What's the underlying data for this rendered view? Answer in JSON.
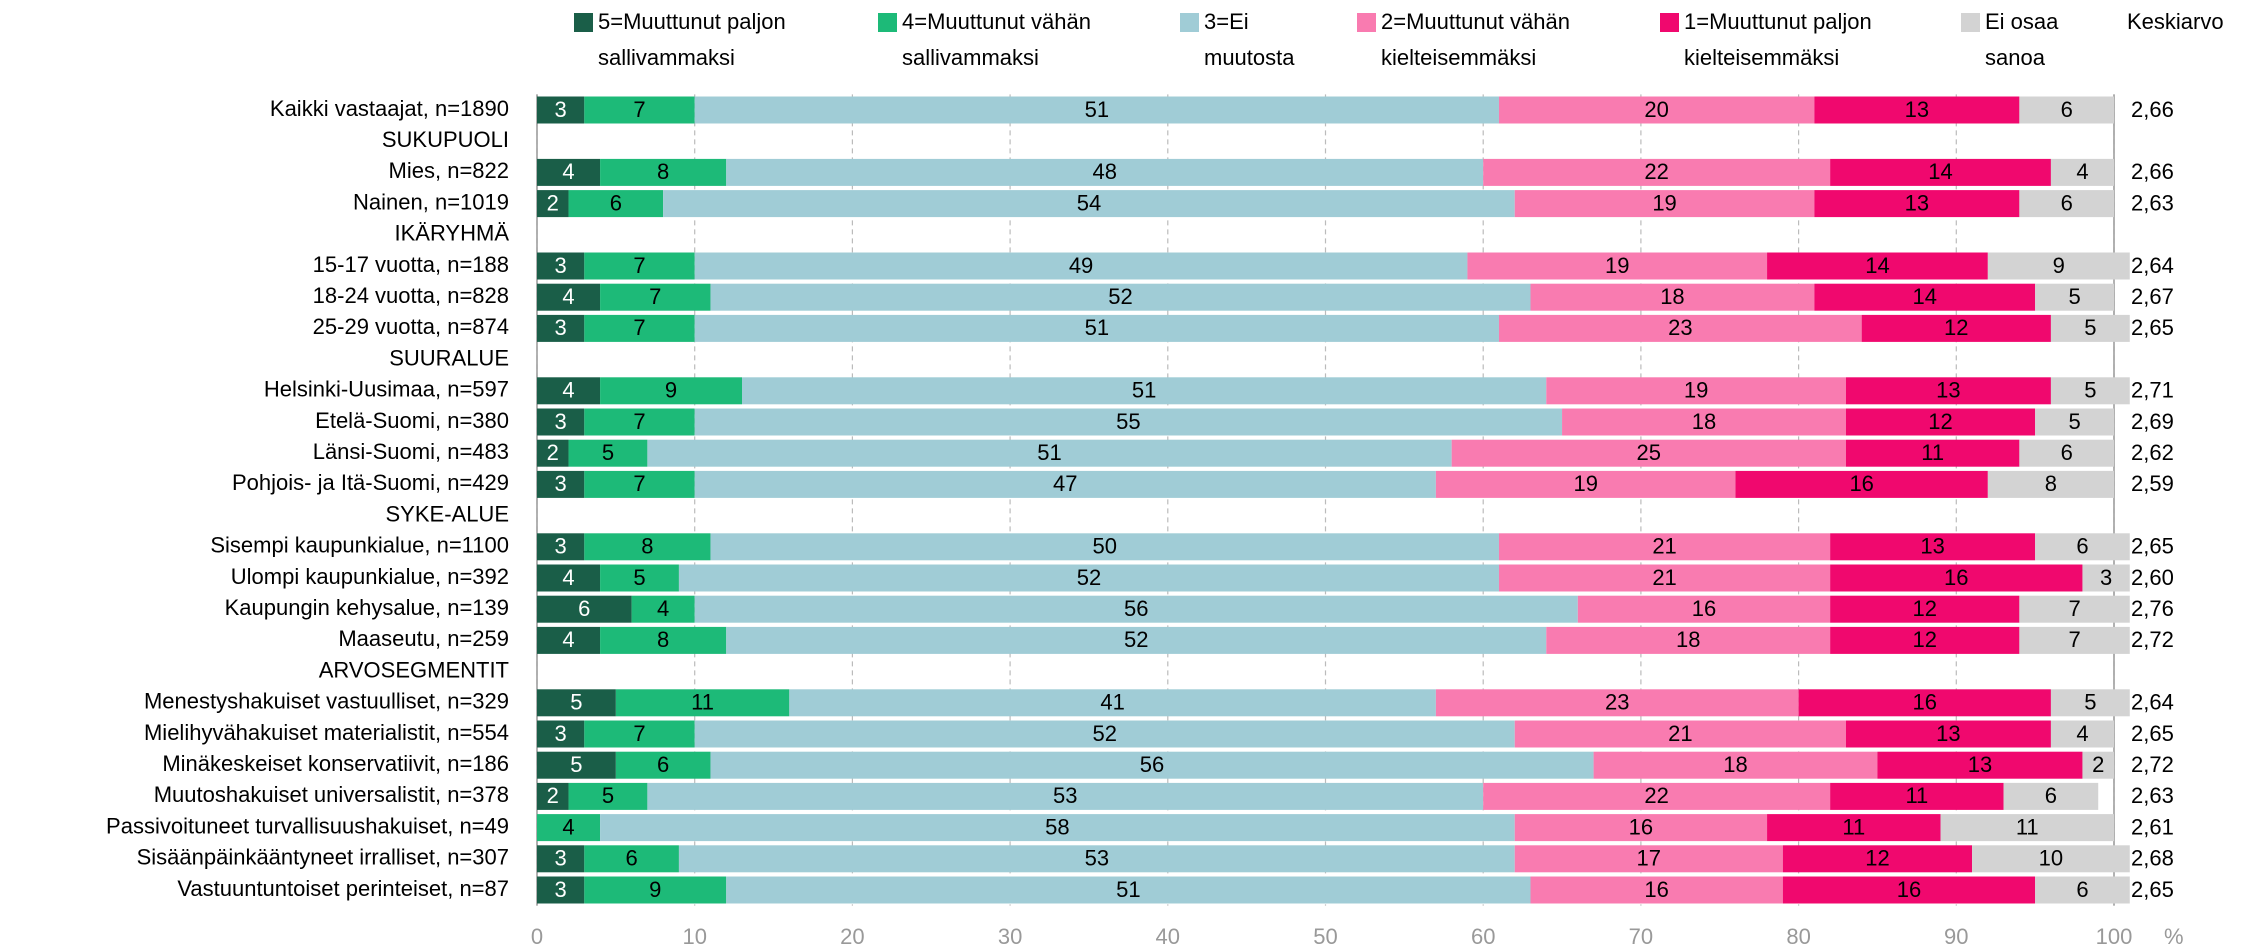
{
  "chart_data": {
    "type": "stacked-bar-horizontal",
    "average_title": "Keskiarvo",
    "x_unit": "%",
    "xlim": [
      0,
      100
    ],
    "xticks": [
      0,
      10,
      20,
      30,
      40,
      50,
      60,
      70,
      80,
      90,
      100
    ],
    "grid": true,
    "legend": "top",
    "categories": [
      "Kaikki vastaajat, n=1890",
      "SUKUPUOLI",
      "Mies, n=822",
      "Nainen, n=1019",
      "IKÄRYHMÄ",
      "15-17 vuotta, n=188",
      "18-24 vuotta, n=828",
      "25-29 vuotta, n=874",
      "SUURALUE",
      "Helsinki-Uusimaa, n=597",
      "Etelä-Suomi, n=380",
      "Länsi-Suomi, n=483",
      "Pohjois- ja Itä-Suomi, n=429",
      "SYKE-ALUE",
      "Sisempi kaupunkialue, n=1100",
      "Ulompi kaupunkialue, n=392",
      "Kaupungin kehysalue, n=139",
      "Maaseutu, n=259",
      "ARVOSEGMENTIT",
      "Menestyshakuiset vastuulliset, n=329",
      "Mielihyvähakuiset materialistit, n=554",
      "Minäkeskeiset konservatiivit, n=186",
      "Muutoshakuiset universalistit, n=378",
      "Passivoituneet turvallisuushakuiset, n=49",
      "Sisäänpäinkääntyneet irralliset, n=307",
      "Vastuuntuntoiset perinteiset, n=87"
    ],
    "series": [
      {
        "name": "5=Muuttunut paljon sallivammaksi",
        "color": "#1a5e48",
        "values": [
          3,
          null,
          4,
          2,
          null,
          3,
          4,
          3,
          null,
          4,
          3,
          2,
          3,
          null,
          3,
          4,
          6,
          4,
          null,
          5,
          3,
          5,
          2,
          null,
          3,
          3
        ]
      },
      {
        "name": "4=Muuttunut vähän sallivammaksi",
        "color": "#1dba78",
        "values": [
          7,
          null,
          8,
          6,
          null,
          7,
          7,
          7,
          null,
          9,
          7,
          5,
          7,
          null,
          8,
          5,
          4,
          8,
          null,
          11,
          7,
          6,
          5,
          4,
          6,
          9
        ]
      },
      {
        "name": "3=Ei muutosta",
        "color": "#a0ccd6",
        "values": [
          51,
          null,
          48,
          54,
          null,
          49,
          52,
          51,
          null,
          51,
          55,
          51,
          47,
          null,
          50,
          52,
          56,
          52,
          null,
          41,
          52,
          56,
          53,
          58,
          53,
          51
        ]
      },
      {
        "name": "2=Muuttunut vähän kielteisemmäksi",
        "color": "#f97bb0",
        "values": [
          20,
          null,
          22,
          19,
          null,
          19,
          18,
          23,
          null,
          19,
          18,
          25,
          19,
          null,
          21,
          21,
          16,
          18,
          null,
          23,
          21,
          18,
          22,
          16,
          17,
          16
        ]
      },
      {
        "name": "1=Muuttunut paljon kielteisemmäksi",
        "color": "#f0086e",
        "values": [
          13,
          null,
          14,
          13,
          null,
          14,
          14,
          12,
          null,
          13,
          12,
          11,
          16,
          null,
          13,
          16,
          12,
          12,
          null,
          16,
          13,
          13,
          11,
          11,
          12,
          16
        ]
      },
      {
        "name": "Ei osaa sanoa",
        "color": "#d3d3d3",
        "values": [
          6,
          null,
          4,
          6,
          null,
          9,
          5,
          5,
          null,
          5,
          5,
          6,
          8,
          null,
          6,
          3,
          7,
          7,
          null,
          5,
          4,
          2,
          6,
          11,
          10,
          6
        ]
      }
    ],
    "averages": [
      "2,66",
      null,
      "2,66",
      "2,63",
      null,
      "2,64",
      "2,67",
      "2,65",
      null,
      "2,71",
      "2,69",
      "2,62",
      "2,59",
      null,
      "2,65",
      "2,60",
      "2,76",
      "2,72",
      null,
      "2,64",
      "2,65",
      "2,72",
      "2,63",
      "2,61",
      "2,68",
      "2,65"
    ]
  }
}
